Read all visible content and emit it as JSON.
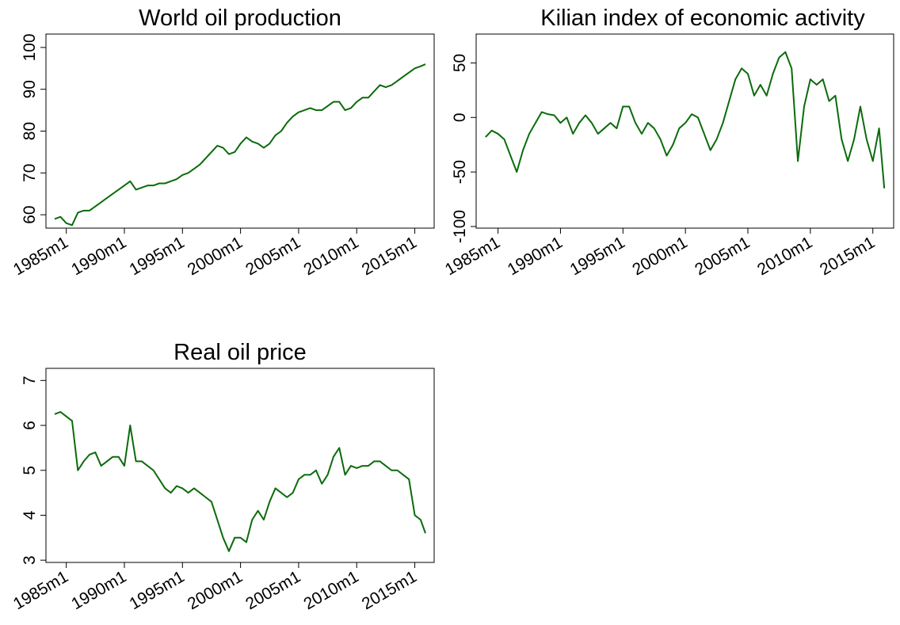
{
  "chart_data": [
    {
      "type": "line",
      "title": "World oil production",
      "color": "#0b6b0b",
      "x": [
        "1984m1",
        "1984m7",
        "1985m1",
        "1985m7",
        "1986m1",
        "1986m7",
        "1987m1",
        "1987m7",
        "1988m1",
        "1988m7",
        "1989m1",
        "1989m7",
        "1990m1",
        "1990m7",
        "1991m1",
        "1991m7",
        "1992m1",
        "1992m7",
        "1993m1",
        "1993m7",
        "1994m1",
        "1994m7",
        "1995m1",
        "1995m7",
        "1996m1",
        "1996m7",
        "1997m1",
        "1997m7",
        "1998m1",
        "1998m7",
        "1999m1",
        "1999m7",
        "2000m1",
        "2000m7",
        "2001m1",
        "2001m7",
        "2002m1",
        "2002m7",
        "2003m1",
        "2003m7",
        "2004m1",
        "2004m7",
        "2005m1",
        "2005m7",
        "2006m1",
        "2006m7",
        "2007m1",
        "2007m7",
        "2008m1",
        "2008m7",
        "2009m1",
        "2009m7",
        "2010m1",
        "2010m7",
        "2011m1",
        "2011m7",
        "2012m1",
        "2012m7",
        "2013m1",
        "2013m7",
        "2014m1",
        "2014m7",
        "2015m1",
        "2015m7",
        "2015m12"
      ],
      "values": [
        59,
        59.5,
        58,
        57.5,
        60.5,
        61,
        61,
        62,
        63,
        64,
        65,
        66,
        67,
        68,
        66,
        66.5,
        67,
        67,
        67.5,
        67.5,
        68,
        68.5,
        69.5,
        70,
        71,
        72,
        73.5,
        75,
        76.5,
        76,
        74.5,
        75,
        77,
        78.5,
        77.5,
        77,
        76,
        77,
        79,
        80,
        82,
        83.5,
        84.5,
        85,
        85.5,
        85,
        85,
        86,
        87,
        87,
        85,
        85.5,
        87,
        88,
        88,
        89.5,
        91,
        90.5,
        91,
        92,
        93,
        94,
        95,
        95.5,
        96
      ],
      "xlim": [
        "1983m4",
        "2016m9"
      ],
      "ylim": [
        56.8,
        103.2
      ],
      "xticks": [
        "1985m1",
        "1990m1",
        "1995m1",
        "2000m1",
        "2005m1",
        "2010m1",
        "2015m1"
      ],
      "yticks": [
        60,
        70,
        80,
        90,
        100
      ]
    },
    {
      "type": "line",
      "title": "Kilian index of economic activity",
      "color": "#0b6b0b",
      "x": [
        "1984m1",
        "1984m7",
        "1985m1",
        "1985m7",
        "1986m1",
        "1986m7",
        "1987m1",
        "1987m7",
        "1988m1",
        "1988m7",
        "1989m1",
        "1989m7",
        "1990m1",
        "1990m7",
        "1991m1",
        "1991m7",
        "1992m1",
        "1992m7",
        "1993m1",
        "1993m7",
        "1994m1",
        "1994m7",
        "1995m1",
        "1995m7",
        "1996m1",
        "1996m7",
        "1997m1",
        "1997m7",
        "1998m1",
        "1998m7",
        "1999m1",
        "1999m7",
        "2000m1",
        "2000m7",
        "2001m1",
        "2001m7",
        "2002m1",
        "2002m7",
        "2003m1",
        "2003m7",
        "2004m1",
        "2004m7",
        "2005m1",
        "2005m7",
        "2006m1",
        "2006m7",
        "2007m1",
        "2007m7",
        "2008m1",
        "2008m7",
        "2009m1",
        "2009m7",
        "2010m1",
        "2010m7",
        "2011m1",
        "2011m7",
        "2012m1",
        "2012m7",
        "2013m1",
        "2013m7",
        "2014m1",
        "2014m7",
        "2015m1",
        "2015m7",
        "2015m12"
      ],
      "values": [
        -18,
        -12,
        -15,
        -20,
        -35,
        -50,
        -30,
        -15,
        -5,
        5,
        3,
        2,
        -5,
        0,
        -15,
        -5,
        2,
        -5,
        -15,
        -10,
        -5,
        -10,
        10,
        10,
        -5,
        -15,
        -5,
        -10,
        -20,
        -35,
        -25,
        -10,
        -5,
        3,
        0,
        -15,
        -30,
        -20,
        -5,
        15,
        35,
        45,
        40,
        20,
        30,
        20,
        40,
        55,
        60,
        45,
        -40,
        10,
        35,
        30,
        35,
        15,
        20,
        -20,
        -40,
        -20,
        10,
        -20,
        -40,
        -10,
        -65
      ],
      "xlim": [
        "1983m4",
        "2016m9"
      ],
      "ylim": [
        -101.5,
        76.5
      ],
      "xticks": [
        "1985m1",
        "1990m1",
        "1995m1",
        "2000m1",
        "2005m1",
        "2010m1",
        "2015m1"
      ],
      "yticks": [
        50,
        0,
        -50,
        -100
      ]
    },
    {
      "type": "line",
      "title": "Real oil price",
      "color": "#0b6b0b",
      "x": [
        "1984m1",
        "1984m7",
        "1985m1",
        "1985m7",
        "1986m1",
        "1986m7",
        "1987m1",
        "1987m7",
        "1988m1",
        "1988m7",
        "1989m1",
        "1989m7",
        "1990m1",
        "1990m7",
        "1991m1",
        "1991m7",
        "1992m1",
        "1992m7",
        "1993m1",
        "1993m7",
        "1994m1",
        "1994m7",
        "1995m1",
        "1995m7",
        "1996m1",
        "1996m7",
        "1997m1",
        "1997m7",
        "1998m1",
        "1998m7",
        "1999m1",
        "1999m7",
        "2000m1",
        "2000m7",
        "2001m1",
        "2001m7",
        "2002m1",
        "2002m7",
        "2003m1",
        "2003m7",
        "2004m1",
        "2004m7",
        "2005m1",
        "2005m7",
        "2006m1",
        "2006m7",
        "2007m1",
        "2007m7",
        "2008m1",
        "2008m7",
        "2009m1",
        "2009m7",
        "2010m1",
        "2010m7",
        "2011m1",
        "2011m7",
        "2012m1",
        "2012m7",
        "2013m1",
        "2013m7",
        "2014m1",
        "2014m7",
        "2015m1",
        "2015m7",
        "2015m12"
      ],
      "values": [
        6.25,
        6.3,
        6.2,
        6.1,
        5.0,
        5.2,
        5.35,
        5.4,
        5.1,
        5.2,
        5.3,
        5.3,
        5.1,
        6.0,
        5.2,
        5.2,
        5.1,
        5.0,
        4.8,
        4.6,
        4.5,
        4.65,
        4.6,
        4.5,
        4.6,
        4.5,
        4.4,
        4.3,
        3.9,
        3.5,
        3.2,
        3.5,
        3.5,
        3.4,
        3.9,
        4.1,
        3.9,
        4.3,
        4.6,
        4.5,
        4.4,
        4.5,
        4.8,
        4.9,
        4.9,
        5.0,
        4.7,
        4.9,
        5.3,
        5.5,
        4.9,
        5.1,
        5.05,
        5.1,
        5.1,
        5.2,
        5.2,
        5.1,
        5.0,
        5.0,
        4.9,
        4.8,
        4.0,
        3.9,
        3.6
      ],
      "xlim": [
        "1983m4",
        "2016m9"
      ],
      "ylim": [
        2.95,
        7.27
      ],
      "xticks": [
        "1985m1",
        "1990m1",
        "1995m1",
        "2000m1",
        "2005m1",
        "2010m1",
        "2015m1"
      ],
      "yticks": [
        3,
        4,
        5,
        6,
        7
      ]
    }
  ]
}
